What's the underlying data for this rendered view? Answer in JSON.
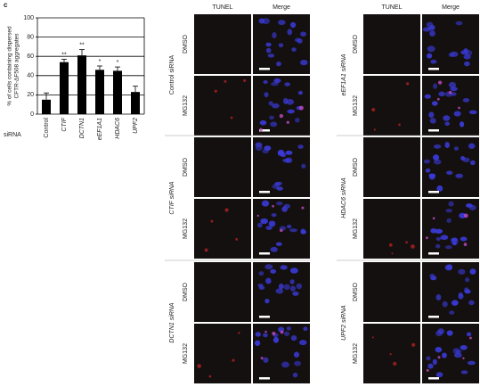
{
  "panel_label": "c",
  "chart_data": {
    "type": "bar",
    "ylabel": [
      "% of cells containing dispersed",
      "CFTR-ΔF508 aggregates"
    ],
    "xlabel": "siRNA",
    "categories": [
      "Control",
      "CTIF",
      "DCTN1",
      "eEF1A1",
      "HDAC6",
      "UPF2"
    ],
    "values": [
      15,
      54,
      61,
      46,
      45,
      23
    ],
    "errors": [
      7,
      3,
      6,
      4,
      4,
      6
    ],
    "annotations": [
      null,
      "**",
      "**",
      "*",
      "*",
      null
    ],
    "color": "#000000",
    "ylim": [
      0,
      100
    ],
    "yticks": [
      0,
      20,
      40,
      60,
      80,
      100
    ],
    "grid": true
  },
  "microscopy": {
    "columns": [
      "TUNEL",
      "Merge"
    ],
    "groups": [
      {
        "label": "Control siRNA",
        "rows": [
          "DMSO",
          "MG132"
        ]
      },
      {
        "label": "CTIF siRNA",
        "rows": [
          "DMSO",
          "MG132"
        ]
      },
      {
        "label": "DCTN1 siRNA",
        "rows": [
          "DMSO",
          "MG132"
        ]
      },
      {
        "label": "eEF1A1 siRNA",
        "rows": [
          "DMSO",
          "MG132"
        ]
      },
      {
        "label": "HDAC6 siRNA",
        "rows": [
          "DMSO",
          "MG132"
        ]
      },
      {
        "label": "UPF2 siRNA",
        "rows": [
          "DMSO",
          "MG132"
        ]
      }
    ]
  }
}
